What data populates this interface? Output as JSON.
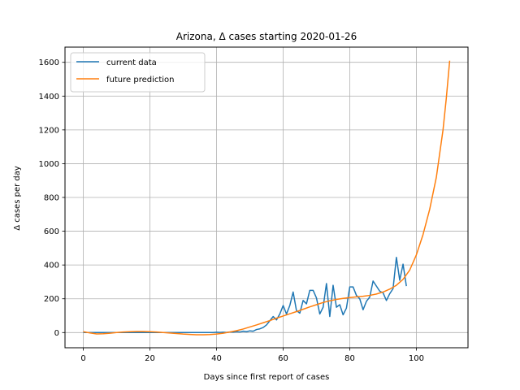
{
  "chart_data": {
    "type": "line",
    "title": "Arizona, Δ cases starting 2020-01-26",
    "xlabel": "Days since first report of cases",
    "ylabel": "Δ cases per day",
    "xlim": [
      -5.5,
      115.5
    ],
    "ylim": [
      -90,
      1690
    ],
    "xticks": [
      0,
      20,
      40,
      60,
      80,
      100
    ],
    "yticks": [
      0,
      200,
      400,
      600,
      800,
      1000,
      1200,
      1400,
      1600
    ],
    "grid": true,
    "legend_position": "top-left",
    "series": [
      {
        "name": "current data",
        "color": "#1f77b4",
        "points": [
          [
            0,
            0
          ],
          [
            1,
            0
          ],
          [
            2,
            0
          ],
          [
            3,
            0
          ],
          [
            4,
            0
          ],
          [
            5,
            0
          ],
          [
            6,
            0
          ],
          [
            7,
            0
          ],
          [
            8,
            0
          ],
          [
            9,
            0
          ],
          [
            10,
            0
          ],
          [
            11,
            0
          ],
          [
            12,
            0
          ],
          [
            13,
            0
          ],
          [
            14,
            0
          ],
          [
            15,
            0
          ],
          [
            16,
            0
          ],
          [
            17,
            0
          ],
          [
            18,
            0
          ],
          [
            19,
            0
          ],
          [
            20,
            0
          ],
          [
            21,
            0
          ],
          [
            22,
            0
          ],
          [
            23,
            0
          ],
          [
            24,
            0
          ],
          [
            25,
            0
          ],
          [
            26,
            0
          ],
          [
            27,
            0
          ],
          [
            28,
            0
          ],
          [
            29,
            0
          ],
          [
            30,
            0
          ],
          [
            31,
            0
          ],
          [
            32,
            0
          ],
          [
            33,
            0
          ],
          [
            34,
            0
          ],
          [
            35,
            0
          ],
          [
            36,
            0
          ],
          [
            37,
            0
          ],
          [
            38,
            0
          ],
          [
            39,
            0
          ],
          [
            40,
            2
          ],
          [
            41,
            1
          ],
          [
            42,
            2
          ],
          [
            43,
            1
          ],
          [
            44,
            3
          ],
          [
            45,
            2
          ],
          [
            46,
            5
          ],
          [
            47,
            3
          ],
          [
            48,
            8
          ],
          [
            49,
            5
          ],
          [
            50,
            10
          ],
          [
            51,
            8
          ],
          [
            52,
            18
          ],
          [
            53,
            22
          ],
          [
            54,
            30
          ],
          [
            55,
            45
          ],
          [
            56,
            70
          ],
          [
            57,
            95
          ],
          [
            58,
            75
          ],
          [
            59,
            110
          ],
          [
            60,
            160
          ],
          [
            61,
            110
          ],
          [
            62,
            160
          ],
          [
            63,
            240
          ],
          [
            64,
            130
          ],
          [
            65,
            115
          ],
          [
            66,
            190
          ],
          [
            67,
            170
          ],
          [
            68,
            250
          ],
          [
            69,
            250
          ],
          [
            70,
            205
          ],
          [
            71,
            110
          ],
          [
            72,
            150
          ],
          [
            73,
            290
          ],
          [
            74,
            95
          ],
          [
            75,
            280
          ],
          [
            76,
            150
          ],
          [
            77,
            165
          ],
          [
            78,
            105
          ],
          [
            79,
            145
          ],
          [
            80,
            270
          ],
          [
            81,
            270
          ],
          [
            82,
            220
          ],
          [
            83,
            200
          ],
          [
            84,
            135
          ],
          [
            85,
            185
          ],
          [
            86,
            210
          ],
          [
            87,
            305
          ],
          [
            88,
            275
          ],
          [
            89,
            245
          ],
          [
            90,
            235
          ],
          [
            91,
            190
          ],
          [
            92,
            230
          ],
          [
            93,
            260
          ],
          [
            94,
            445
          ],
          [
            95,
            310
          ],
          [
            96,
            405
          ],
          [
            97,
            275
          ]
        ]
      },
      {
        "name": "future prediction",
        "color": "#ff7f0e",
        "points": [
          [
            0,
            5
          ],
          [
            2,
            -2
          ],
          [
            4,
            -8
          ],
          [
            6,
            -7
          ],
          [
            8,
            -4
          ],
          [
            10,
            0
          ],
          [
            12,
            3
          ],
          [
            14,
            5
          ],
          [
            16,
            6
          ],
          [
            18,
            6
          ],
          [
            20,
            5
          ],
          [
            22,
            3
          ],
          [
            24,
            0
          ],
          [
            26,
            -3
          ],
          [
            28,
            -6
          ],
          [
            30,
            -9
          ],
          [
            32,
            -11
          ],
          [
            34,
            -13
          ],
          [
            36,
            -13
          ],
          [
            38,
            -12
          ],
          [
            40,
            -9
          ],
          [
            42,
            -4
          ],
          [
            44,
            3
          ],
          [
            46,
            11
          ],
          [
            48,
            21
          ],
          [
            50,
            33
          ],
          [
            52,
            45
          ],
          [
            54,
            58
          ],
          [
            56,
            71
          ],
          [
            58,
            85
          ],
          [
            60,
            98
          ],
          [
            62,
            111
          ],
          [
            64,
            124
          ],
          [
            66,
            138
          ],
          [
            68,
            152
          ],
          [
            70,
            165
          ],
          [
            72,
            178
          ],
          [
            74,
            188
          ],
          [
            76,
            196
          ],
          [
            78,
            202
          ],
          [
            80,
            207
          ],
          [
            82,
            211
          ],
          [
            84,
            215
          ],
          [
            86,
            220
          ],
          [
            88,
            228
          ],
          [
            90,
            240
          ],
          [
            92,
            257
          ],
          [
            94,
            280
          ],
          [
            96,
            315
          ],
          [
            98,
            370
          ],
          [
            100,
            460
          ],
          [
            102,
            580
          ],
          [
            104,
            730
          ],
          [
            106,
            920
          ],
          [
            108,
            1200
          ],
          [
            109,
            1390
          ],
          [
            110,
            1610
          ]
        ]
      }
    ]
  }
}
